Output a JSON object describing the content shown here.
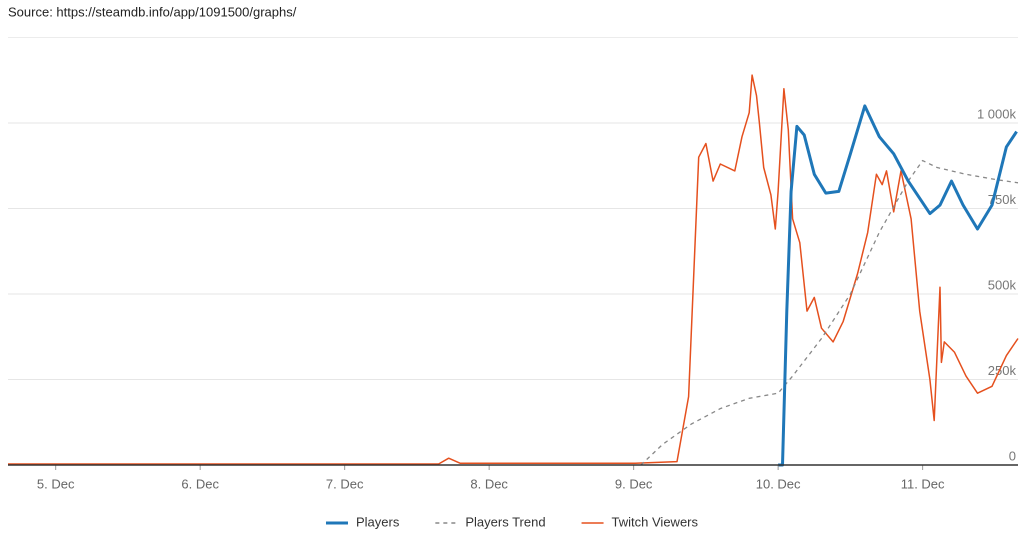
{
  "chart_data": {
    "type": "line",
    "source": "Source: https://steamdb.info/app/1091500/graphs/",
    "xlim": [
      4.67,
      11.66
    ],
    "xticks": [
      {
        "value": 5,
        "label": "5. Dec"
      },
      {
        "value": 6,
        "label": "6. Dec"
      },
      {
        "value": 7,
        "label": "7. Dec"
      },
      {
        "value": 8,
        "label": "8. Dec"
      },
      {
        "value": 9,
        "label": "9. Dec"
      },
      {
        "value": 10,
        "label": "10. Dec"
      },
      {
        "value": 11,
        "label": "11. Dec"
      }
    ],
    "ylim": [
      0,
      1250000
    ],
    "yticks": [
      0,
      {
        "value": 250000,
        "label": "250k"
      },
      {
        "value": 500000,
        "label": "500k"
      },
      {
        "value": 750000,
        "label": "750k"
      },
      {
        "value": 1000000,
        "label": "1 000k"
      }
    ],
    "grid": true,
    "legend": "bottom",
    "series": [
      {
        "name": "Players",
        "color": "#1f77b8",
        "line_style": "thick",
        "x": [
          10.0,
          10.03,
          10.06,
          10.09,
          10.13,
          10.18,
          10.25,
          10.33,
          10.42,
          10.5,
          10.6,
          10.7,
          10.8,
          10.9,
          11.05,
          11.12,
          11.2,
          11.28,
          11.38,
          11.48,
          11.58,
          11.65
        ],
        "values": [
          0,
          0,
          450000,
          800000,
          990000,
          965000,
          850000,
          795000,
          800000,
          910000,
          1050000,
          960000,
          910000,
          830000,
          735000,
          760000,
          830000,
          760000,
          690000,
          760000,
          930000,
          975000
        ]
      },
      {
        "name": "Players Trend",
        "color": "#888888",
        "line_style": "dashed",
        "x": [
          9.05,
          9.2,
          9.4,
          9.6,
          9.8,
          10.0,
          10.1,
          10.3,
          10.5,
          10.7,
          10.9,
          11.0,
          11.1,
          11.3,
          11.5,
          11.66
        ],
        "values": [
          0,
          60000,
          120000,
          165000,
          195000,
          210000,
          260000,
          370000,
          500000,
          680000,
          830000,
          890000,
          870000,
          850000,
          835000,
          825000
        ]
      },
      {
        "name": "Twitch Viewers",
        "color": "#e5501e",
        "line_style": "thin",
        "x": [
          4.67,
          7.65,
          7.72,
          7.8,
          9.0,
          9.3,
          9.38,
          9.45,
          9.5,
          9.55,
          9.6,
          9.7,
          9.75,
          9.8,
          9.82,
          9.85,
          9.87,
          9.9,
          9.95,
          9.98,
          10.0,
          10.04,
          10.07,
          10.1,
          10.15,
          10.2,
          10.25,
          10.3,
          10.38,
          10.45,
          10.55,
          10.62,
          10.68,
          10.72,
          10.75,
          10.8,
          10.85,
          10.92,
          10.98,
          11.05,
          11.08,
          11.12,
          11.13,
          11.15,
          11.22,
          11.3,
          11.38,
          11.48,
          11.58,
          11.66
        ],
        "values": [
          3000,
          3000,
          20000,
          5000,
          5000,
          10000,
          200000,
          900000,
          940000,
          830000,
          880000,
          860000,
          960000,
          1030000,
          1140000,
          1080000,
          1000000,
          870000,
          790000,
          690000,
          800000,
          1100000,
          980000,
          720000,
          650000,
          450000,
          490000,
          400000,
          360000,
          420000,
          560000,
          680000,
          850000,
          820000,
          860000,
          740000,
          860000,
          720000,
          450000,
          250000,
          130000,
          520000,
          300000,
          360000,
          330000,
          260000,
          210000,
          230000,
          320000,
          370000
        ]
      }
    ]
  }
}
